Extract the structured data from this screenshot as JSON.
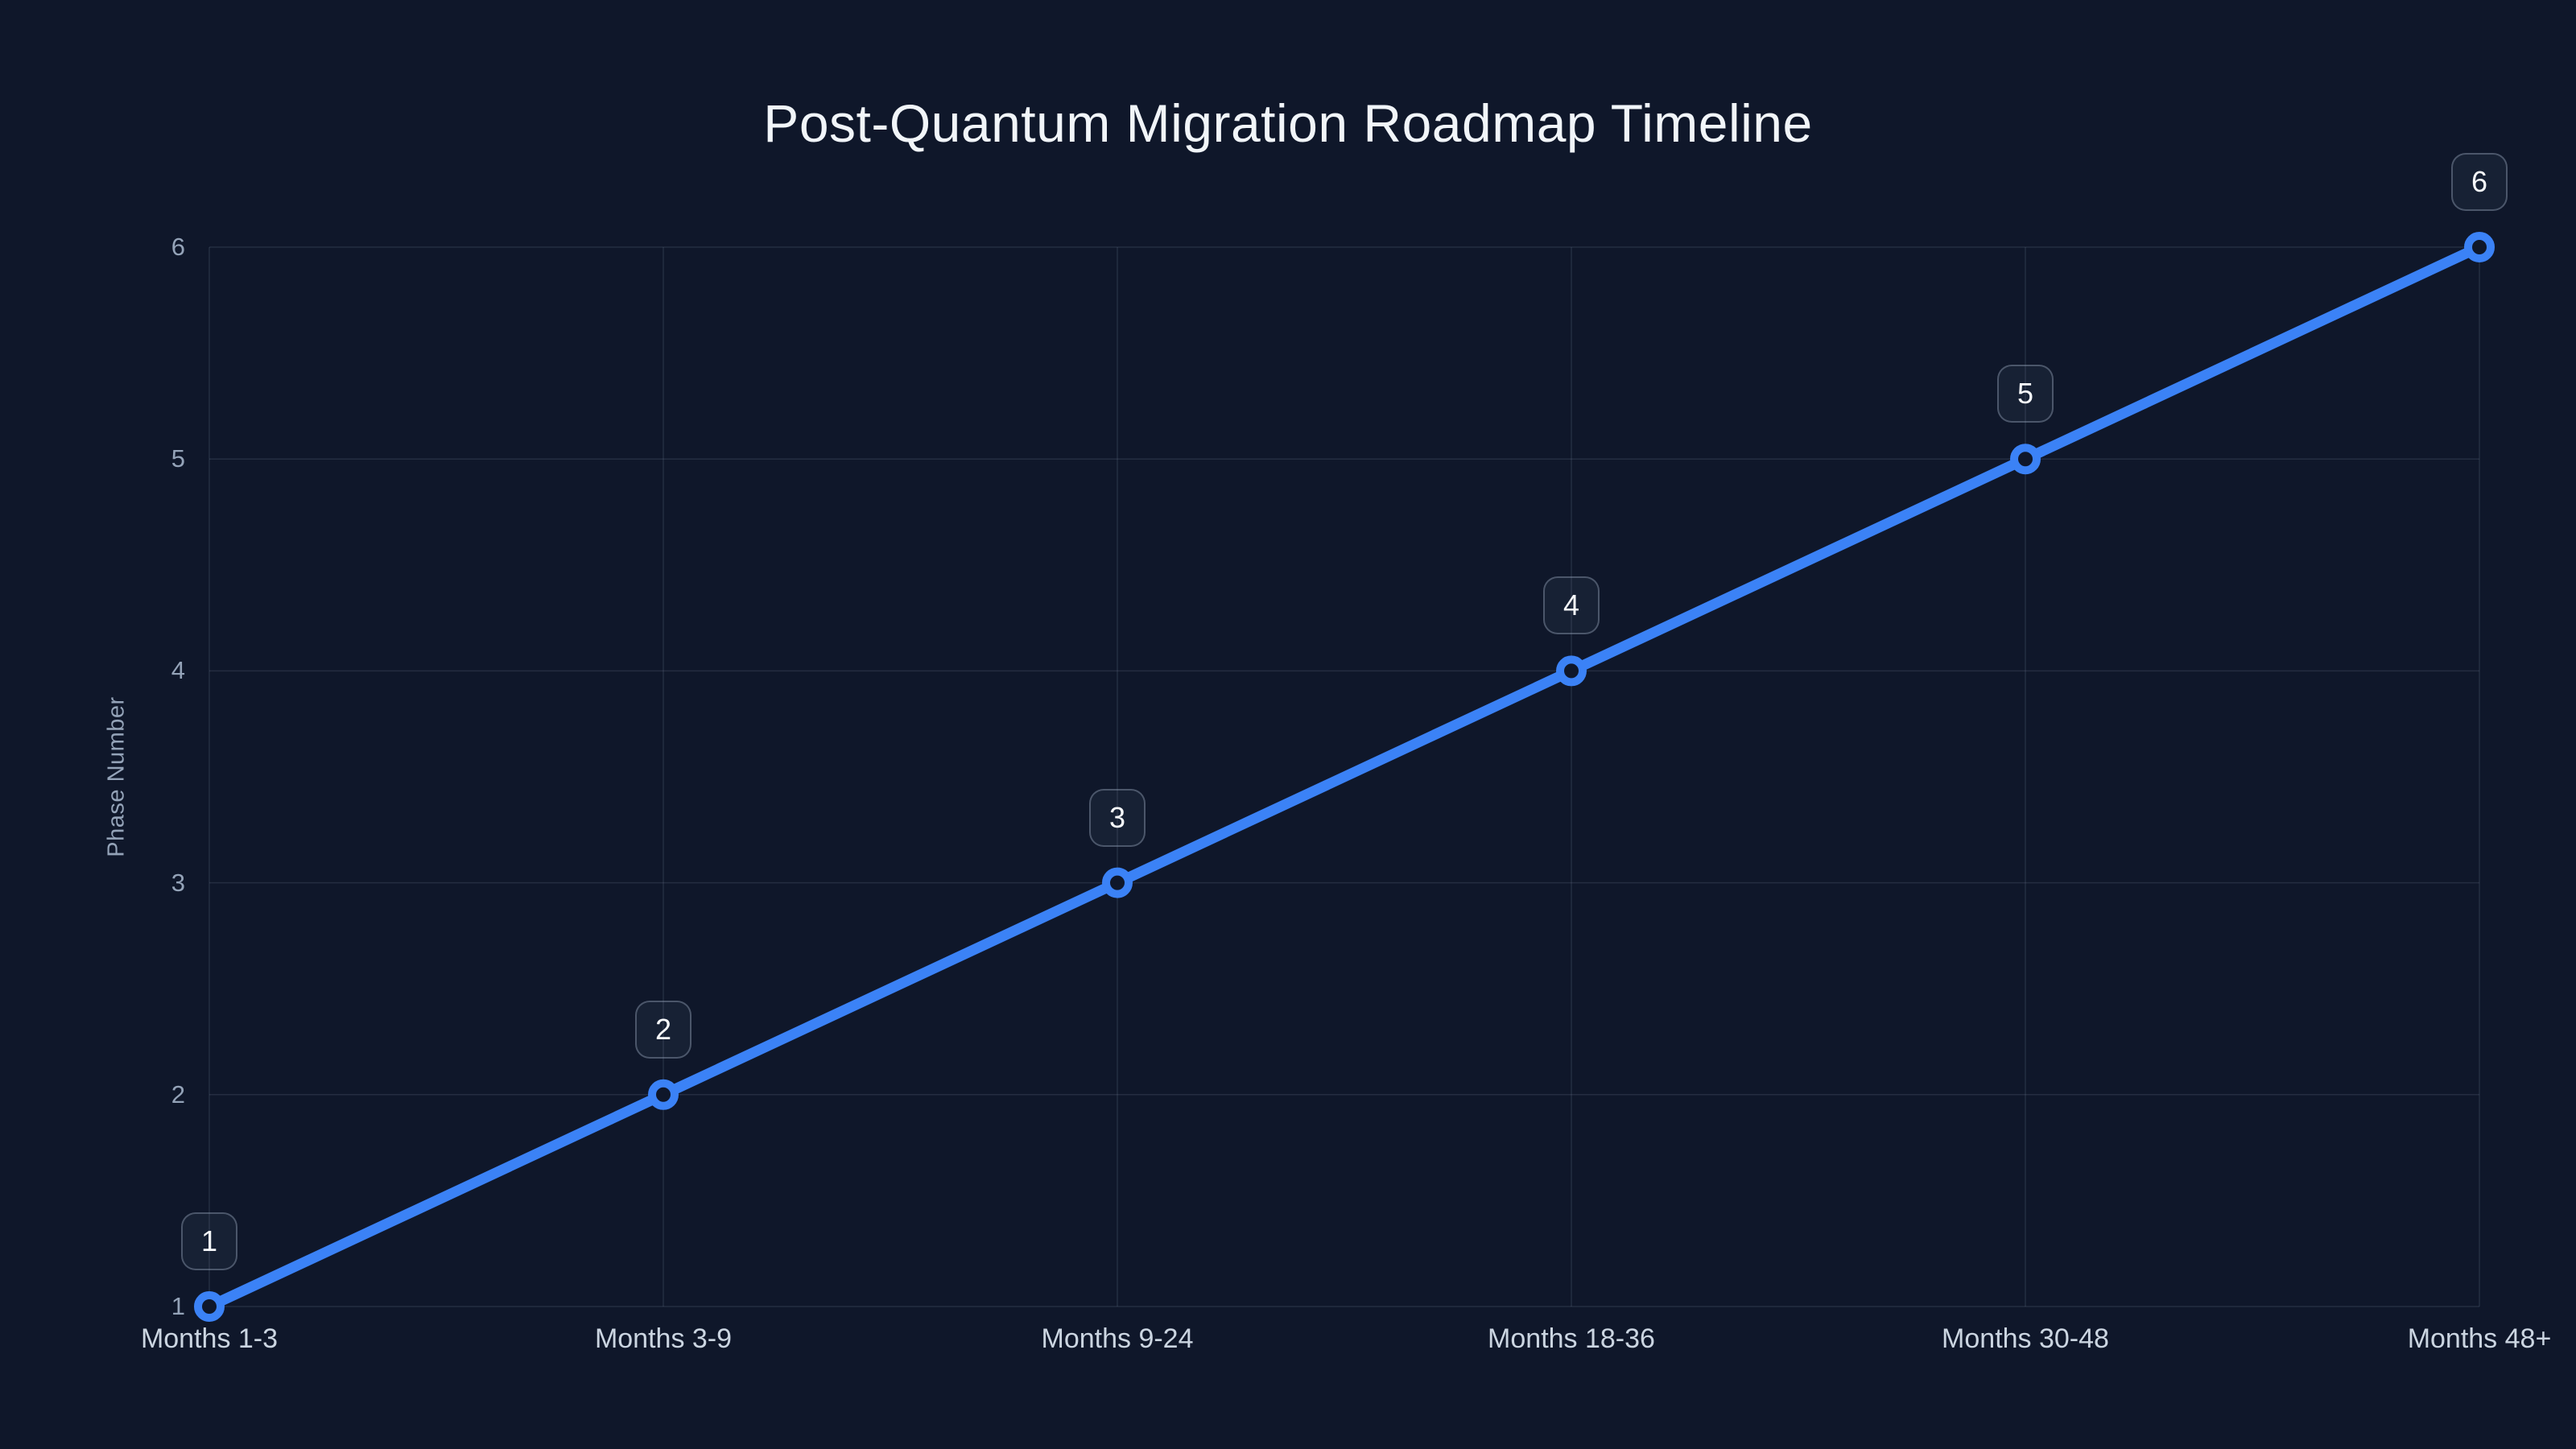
{
  "page": {
    "background_color": "#0f172a"
  },
  "chart_data": {
    "type": "line",
    "title": "Post-Quantum Migration Roadmap Timeline",
    "categories": [
      "Months 1-3",
      "Months 3-9",
      "Months 9-24",
      "Months 18-36",
      "Months 30-48",
      "Months 48+"
    ],
    "series": [
      {
        "name": "Phase Number",
        "values": [
          1,
          2,
          3,
          4,
          5,
          6
        ],
        "color": "#3b82f6",
        "marker": "open-circle",
        "point_badges": [
          "1",
          "2",
          "3",
          "4",
          "5",
          "6"
        ]
      }
    ],
    "xlabel": "",
    "ylabel": "Phase Number",
    "ylim": [
      1,
      6
    ],
    "yticks": [
      "1",
      "2",
      "3",
      "4",
      "5",
      "6"
    ],
    "grid": true,
    "legend": false,
    "colors": {
      "title_text": "#f1f5f9",
      "line": "#3b82f6",
      "marker_fill": "#0f172a",
      "grid_line": "#94a3b8",
      "y_tick_text": "#94a3b8",
      "x_tick_text": "#cbd5e1",
      "badge_text": "#f8fafc"
    }
  }
}
